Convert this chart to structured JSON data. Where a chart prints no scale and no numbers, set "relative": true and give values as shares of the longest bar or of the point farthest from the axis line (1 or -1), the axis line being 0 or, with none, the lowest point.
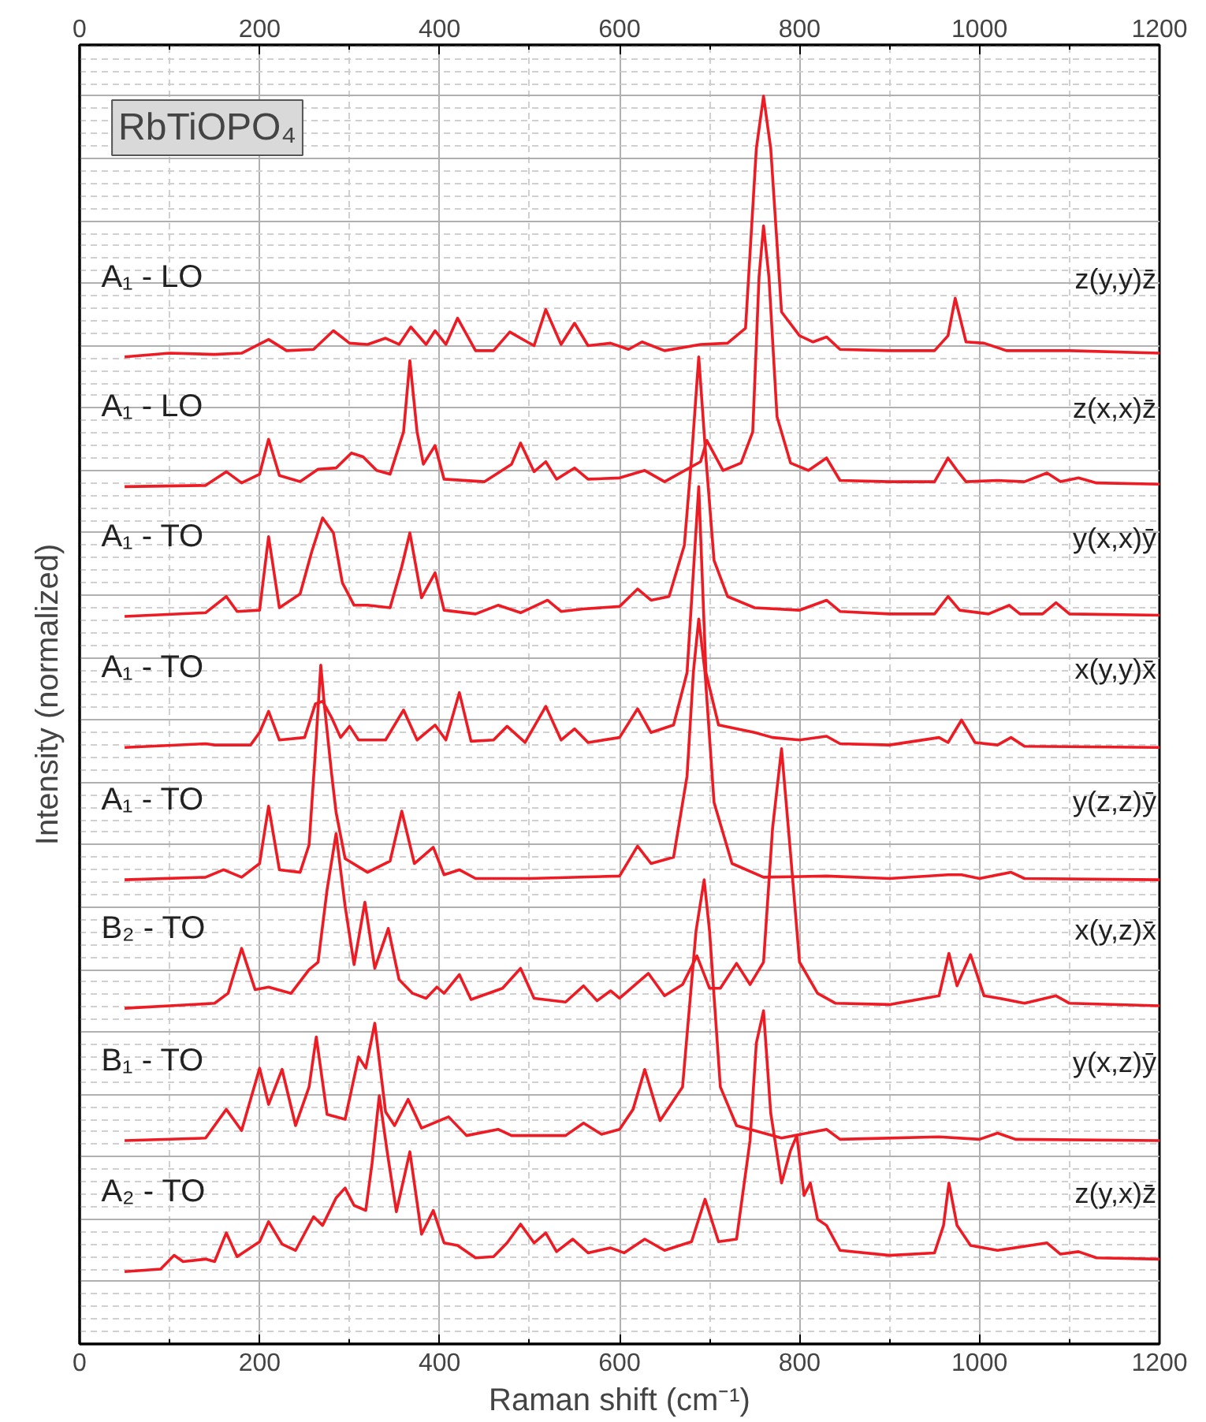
{
  "chart_data": {
    "type": "line",
    "title": "RbTiOPO₄",
    "xlabel": "Raman shift (cm⁻¹)",
    "ylabel": "Intensity (normalized)",
    "relative": true,
    "xlim": [
      0,
      1200
    ],
    "xticks": [
      0,
      200,
      400,
      600,
      800,
      1000,
      1200
    ],
    "x2lim": [
      0,
      1200
    ],
    "x2ticks": [
      0,
      200,
      400,
      600,
      800,
      1000,
      1200
    ],
    "grid": true,
    "tick_labels": "x",
    "annotations": [
      "z(y,y)z̄",
      "z(x,x)z̄",
      "y(x,x)ȳ",
      "x(y,y)x̄",
      "y(z,z)ȳ",
      "x(y,z)x̄",
      "y(x,z)ȳ",
      "z(y,x)z̄"
    ],
    "series": [
      {
        "name": "A₁ - LO",
        "color": "#ed1c24",
        "x": [
          50,
          100,
          150,
          180,
          210,
          230,
          260,
          282,
          300,
          320,
          340,
          355,
          368,
          385,
          395,
          407,
          420,
          440,
          460,
          478,
          495,
          505,
          518,
          535,
          550,
          565,
          590,
          610,
          625,
          650,
          690,
          720,
          740,
          752,
          760,
          768,
          780,
          800,
          815,
          830,
          845,
          900,
          950,
          965,
          973,
          985,
          1005,
          1030,
          1100,
          1200
        ],
        "values": [
          0.791,
          0.794,
          0.793,
          0.794,
          0.805,
          0.796,
          0.797,
          0.812,
          0.802,
          0.801,
          0.806,
          0.801,
          0.815,
          0.801,
          0.812,
          0.801,
          0.822,
          0.796,
          0.796,
          0.811,
          0.804,
          0.8,
          0.829,
          0.801,
          0.818,
          0.8,
          0.802,
          0.797,
          0.803,
          0.796,
          0.801,
          0.802,
          0.814,
          0.958,
          1.0,
          0.958,
          0.827,
          0.808,
          0.803,
          0.807,
          0.797,
          0.796,
          0.796,
          0.808,
          0.838,
          0.803,
          0.802,
          0.796,
          0.796,
          0.794
        ]
      },
      {
        "name": "A₁ - LO",
        "color": "#ed1c24",
        "x": [
          50,
          140,
          163,
          180,
          200,
          210,
          222,
          245,
          265,
          285,
          302,
          315,
          330,
          345,
          360,
          367,
          375,
          382,
          395,
          405,
          450,
          480,
          490,
          505,
          518,
          530,
          550,
          565,
          600,
          628,
          650,
          690,
          697,
          715,
          735,
          748,
          755,
          760,
          766,
          775,
          790,
          810,
          830,
          845,
          900,
          950,
          965,
          975,
          985,
          1020,
          1050,
          1075,
          1090,
          1110,
          1130,
          1200
        ],
        "values": [
          0.687,
          0.688,
          0.699,
          0.69,
          0.697,
          0.725,
          0.696,
          0.691,
          0.701,
          0.702,
          0.714,
          0.711,
          0.7,
          0.697,
          0.731,
          0.788,
          0.731,
          0.705,
          0.72,
          0.693,
          0.691,
          0.705,
          0.722,
          0.699,
          0.707,
          0.693,
          0.702,
          0.693,
          0.694,
          0.7,
          0.691,
          0.707,
          0.724,
          0.7,
          0.706,
          0.731,
          0.855,
          0.896,
          0.855,
          0.743,
          0.706,
          0.7,
          0.71,
          0.692,
          0.691,
          0.691,
          0.71,
          0.7,
          0.691,
          0.692,
          0.691,
          0.698,
          0.691,
          0.694,
          0.69,
          0.689
        ]
      },
      {
        "name": "A₁ - TO",
        "color": "#ed1c24",
        "x": [
          50,
          140,
          163,
          175,
          200,
          210,
          222,
          245,
          258,
          270,
          282,
          292,
          305,
          320,
          345,
          358,
          367,
          380,
          395,
          405,
          440,
          465,
          490,
          520,
          535,
          560,
          600,
          620,
          635,
          655,
          672,
          680,
          688,
          696,
          705,
          720,
          750,
          800,
          830,
          845,
          900,
          950,
          965,
          978,
          1010,
          1033,
          1045,
          1070,
          1085,
          1100,
          1200
        ],
        "values": [
          0.583,
          0.586,
          0.599,
          0.587,
          0.588,
          0.647,
          0.59,
          0.601,
          0.635,
          0.662,
          0.65,
          0.61,
          0.592,
          0.592,
          0.59,
          0.623,
          0.65,
          0.598,
          0.618,
          0.588,
          0.585,
          0.592,
          0.586,
          0.596,
          0.587,
          0.589,
          0.591,
          0.605,
          0.596,
          0.599,
          0.64,
          0.71,
          0.791,
          0.71,
          0.628,
          0.599,
          0.59,
          0.588,
          0.596,
          0.587,
          0.585,
          0.585,
          0.599,
          0.588,
          0.585,
          0.592,
          0.585,
          0.585,
          0.594,
          0.585,
          0.584
        ]
      },
      {
        "name": "A₁ - TO",
        "color": "#ed1c24",
        "x": [
          50,
          140,
          150,
          190,
          200,
          210,
          222,
          250,
          262,
          270,
          280,
          290,
          300,
          310,
          340,
          360,
          375,
          395,
          407,
          422,
          435,
          460,
          475,
          495,
          518,
          535,
          550,
          565,
          600,
          620,
          635,
          660,
          675,
          688,
          696,
          710,
          730,
          750,
          770,
          800,
          830,
          845,
          900,
          955,
          965,
          980,
          995,
          1020,
          1035,
          1050,
          1200
        ],
        "values": [
          0.478,
          0.481,
          0.48,
          0.48,
          0.49,
          0.507,
          0.484,
          0.486,
          0.513,
          0.515,
          0.502,
          0.486,
          0.495,
          0.484,
          0.484,
          0.508,
          0.484,
          0.496,
          0.484,
          0.522,
          0.483,
          0.484,
          0.495,
          0.482,
          0.511,
          0.484,
          0.493,
          0.482,
          0.486,
          0.509,
          0.49,
          0.496,
          0.538,
          0.687,
          0.538,
          0.496,
          0.493,
          0.49,
          0.486,
          0.484,
          0.487,
          0.481,
          0.48,
          0.486,
          0.482,
          0.5,
          0.482,
          0.48,
          0.486,
          0.479,
          0.478
        ]
      },
      {
        "name": "A₁ - TO",
        "color": "#ed1c24",
        "x": [
          50,
          140,
          160,
          180,
          200,
          210,
          222,
          245,
          255,
          262,
          268,
          272,
          280,
          285,
          295,
          320,
          345,
          358,
          372,
          393,
          405,
          422,
          440,
          500,
          600,
          620,
          635,
          660,
          675,
          682,
          688,
          695,
          705,
          725,
          760,
          830,
          900,
          965,
          980,
          1000,
          1035,
          1050,
          1200
        ],
        "values": [
          0.372,
          0.374,
          0.38,
          0.374,
          0.385,
          0.431,
          0.38,
          0.378,
          0.4,
          0.475,
          0.544,
          0.512,
          0.457,
          0.426,
          0.389,
          0.378,
          0.387,
          0.427,
          0.385,
          0.398,
          0.376,
          0.38,
          0.373,
          0.373,
          0.375,
          0.399,
          0.385,
          0.39,
          0.455,
          0.538,
          0.581,
          0.538,
          0.434,
          0.385,
          0.374,
          0.375,
          0.373,
          0.376,
          0.376,
          0.373,
          0.378,
          0.373,
          0.372
        ]
      },
      {
        "name": "B₂ - TO",
        "color": "#ed1c24",
        "x": [
          50,
          100,
          150,
          165,
          180,
          195,
          210,
          235,
          255,
          265,
          275,
          285,
          295,
          305,
          317,
          328,
          343,
          355,
          370,
          385,
          397,
          405,
          422,
          435,
          470,
          490,
          505,
          540,
          560,
          575,
          590,
          600,
          632,
          650,
          670,
          686,
          700,
          712,
          730,
          745,
          760,
          770,
          780,
          790,
          800,
          820,
          840,
          900,
          955,
          966,
          975,
          990,
          1005,
          1022,
          1050,
          1085,
          1100,
          1200
        ],
        "values": [
          0.269,
          0.271,
          0.273,
          0.281,
          0.317,
          0.284,
          0.286,
          0.281,
          0.3,
          0.306,
          0.364,
          0.409,
          0.351,
          0.304,
          0.354,
          0.301,
          0.333,
          0.292,
          0.281,
          0.277,
          0.286,
          0.281,
          0.296,
          0.276,
          0.285,
          0.301,
          0.277,
          0.274,
          0.287,
          0.275,
          0.283,
          0.277,
          0.297,
          0.279,
          0.288,
          0.311,
          0.285,
          0.285,
          0.305,
          0.288,
          0.306,
          0.413,
          0.477,
          0.393,
          0.306,
          0.281,
          0.273,
          0.272,
          0.279,
          0.313,
          0.287,
          0.312,
          0.279,
          0.277,
          0.273,
          0.279,
          0.273,
          0.271
        ]
      },
      {
        "name": "B₁ - TO",
        "color": "#ed1c24",
        "x": [
          50,
          140,
          163,
          180,
          200,
          210,
          225,
          240,
          255,
          263,
          275,
          295,
          310,
          318,
          328,
          340,
          350,
          365,
          380,
          410,
          430,
          465,
          480,
          540,
          560,
          580,
          600,
          615,
          628,
          645,
          670,
          685,
          694,
          700,
          712,
          730,
          780,
          830,
          845,
          955,
          1000,
          1020,
          1040,
          1200
        ],
        "values": [
          0.163,
          0.165,
          0.188,
          0.171,
          0.221,
          0.192,
          0.22,
          0.175,
          0.206,
          0.246,
          0.184,
          0.18,
          0.23,
          0.221,
          0.257,
          0.186,
          0.175,
          0.196,
          0.173,
          0.182,
          0.167,
          0.172,
          0.167,
          0.167,
          0.177,
          0.168,
          0.172,
          0.188,
          0.22,
          0.179,
          0.206,
          0.331,
          0.372,
          0.331,
          0.206,
          0.175,
          0.165,
          0.172,
          0.164,
          0.166,
          0.164,
          0.169,
          0.164,
          0.163
        ]
      },
      {
        "name": "A₂ - TO",
        "color": "#ed1c24",
        "x": [
          50,
          90,
          105,
          115,
          140,
          150,
          163,
          175,
          200,
          210,
          225,
          240,
          260,
          270,
          285,
          295,
          305,
          318,
          325,
          333,
          342,
          352,
          367,
          380,
          393,
          405,
          420,
          440,
          460,
          475,
          490,
          505,
          518,
          530,
          548,
          565,
          590,
          605,
          628,
          650,
          680,
          695,
          710,
          730,
          745,
          752,
          760,
          768,
          780,
          790,
          797,
          805,
          812,
          820,
          830,
          845,
          900,
          950,
          960,
          966,
          975,
          990,
          1020,
          1075,
          1090,
          1110,
          1130,
          1200
        ],
        "values": [
          0.058,
          0.06,
          0.071,
          0.066,
          0.068,
          0.066,
          0.089,
          0.07,
          0.082,
          0.098,
          0.08,
          0.075,
          0.102,
          0.095,
          0.117,
          0.125,
          0.111,
          0.107,
          0.145,
          0.199,
          0.153,
          0.106,
          0.154,
          0.088,
          0.107,
          0.081,
          0.079,
          0.069,
          0.07,
          0.081,
          0.096,
          0.081,
          0.089,
          0.074,
          0.084,
          0.073,
          0.077,
          0.073,
          0.084,
          0.075,
          0.082,
          0.116,
          0.082,
          0.084,
          0.163,
          0.241,
          0.267,
          0.185,
          0.129,
          0.155,
          0.167,
          0.119,
          0.129,
          0.1,
          0.095,
          0.075,
          0.071,
          0.073,
          0.095,
          0.129,
          0.095,
          0.079,
          0.075,
          0.081,
          0.072,
          0.074,
          0.069,
          0.068
        ]
      }
    ]
  }
}
